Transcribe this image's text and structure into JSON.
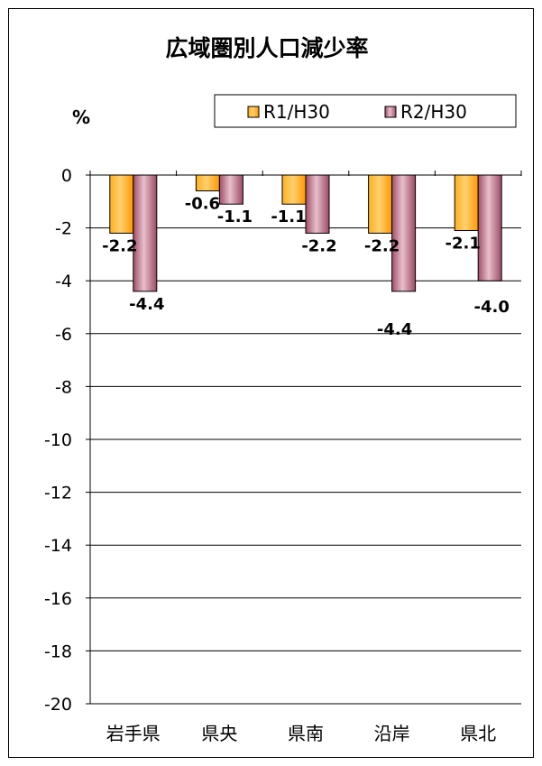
{
  "chart_data": {
    "type": "bar",
    "title": "広域圏別人口減少率",
    "unit_label": "%",
    "categories": [
      "岩手県",
      "県央",
      "県南",
      "沿岸",
      "県北"
    ],
    "series": [
      {
        "name": "R1/H30",
        "values": [
          -2.2,
          -0.6,
          -1.1,
          -2.2,
          -2.1
        ],
        "labels": [
          "-2.2",
          "-0.6",
          "-1.1",
          "-2.2",
          "-2.1"
        ],
        "color": "#FFA000"
      },
      {
        "name": "R2/H30",
        "values": [
          -4.4,
          -1.1,
          -2.2,
          -4.4,
          -4.0
        ],
        "labels": [
          "-4.4",
          "-1.1",
          "-2.2",
          "-4.4",
          "-4.0"
        ],
        "color": "#B0607A"
      }
    ],
    "ylim": [
      -20,
      0
    ],
    "yticks": [
      0,
      -2,
      -4,
      -6,
      -8,
      -10,
      -12,
      -14,
      -16,
      -18,
      -20
    ],
    "ytick_labels": [
      "0",
      "-2",
      "-4",
      "-6",
      "-8",
      "-10",
      "-12",
      "-14",
      "-16",
      "-18",
      "-20"
    ],
    "grid": true,
    "legend_position": "top-right"
  }
}
